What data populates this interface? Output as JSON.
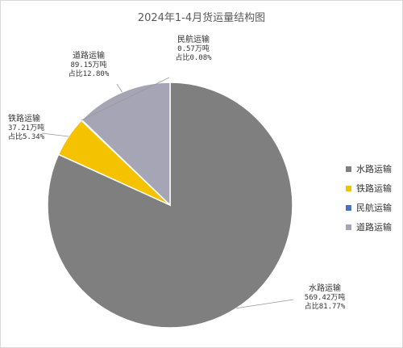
{
  "chart_data": {
    "type": "pie",
    "title": "2024年1-4月货运量结构图",
    "categories": [
      "水路运输",
      "铁路运输",
      "民航运输",
      "道路运输"
    ],
    "values": [
      569.42,
      37.21,
      0.57,
      89.15
    ],
    "value_labels": [
      "569.42万吨",
      "37.21万吨",
      "0.57万吨",
      "89.15万吨"
    ],
    "share_labels": [
      "占比81.77%",
      "占比5.34%",
      "占比0.08%",
      "占比12.80%"
    ],
    "colors": [
      "#7f7f7f",
      "#f5c200",
      "#4472c4",
      "#a5a5b5"
    ],
    "legend_position": "right"
  }
}
